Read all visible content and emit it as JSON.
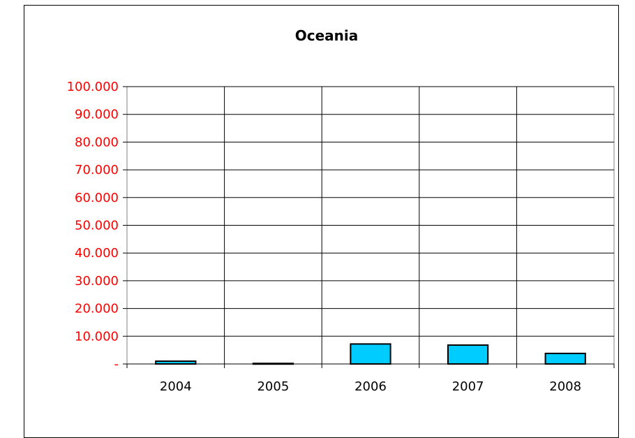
{
  "chart_data": {
    "type": "bar",
    "title": "Oceania",
    "xlabel": "",
    "ylabel": "",
    "categories": [
      "2004",
      "2005",
      "2006",
      "2007",
      "2008"
    ],
    "values": [
      1000,
      200,
      7200,
      6800,
      3800
    ],
    "ylim": [
      0,
      100000
    ],
    "yticks": [
      0,
      10000,
      20000,
      30000,
      40000,
      50000,
      60000,
      70000,
      80000,
      90000,
      100000
    ],
    "ytick_labels": [
      "-",
      "10.000",
      "20.000",
      "30.000",
      "40.000",
      "50.000",
      "60.000",
      "70.000",
      "80.000",
      "90.000",
      "100.000"
    ],
    "grid": true,
    "legend": "none",
    "colors": {
      "bar_fill": "#00ccff",
      "bar_stroke": "#000000",
      "ytick_text": "#ff0000",
      "grid": "#000000"
    }
  }
}
